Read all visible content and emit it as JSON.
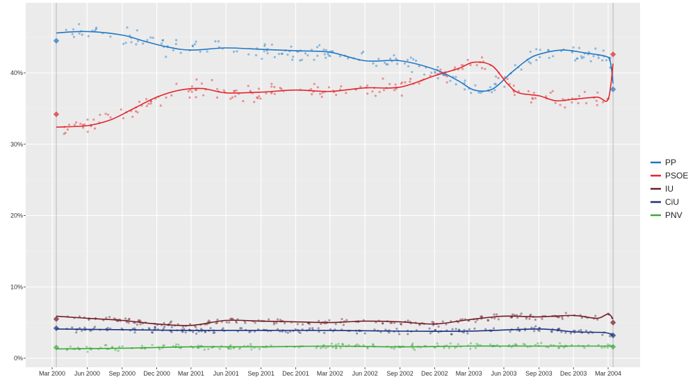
{
  "chart_data": {
    "type": "line",
    "title": "",
    "xlabel": "",
    "ylabel": "",
    "ylim": [
      0,
      48
    ],
    "xlim": [
      "2000-02-01",
      "2004-04-07"
    ],
    "grid": true,
    "legend_position": "right",
    "y_ticks": [
      {
        "value": 0,
        "label": "0%"
      },
      {
        "value": 10,
        "label": "10%"
      },
      {
        "value": 20,
        "label": "20%"
      },
      {
        "value": 30,
        "label": "30%"
      },
      {
        "value": 40,
        "label": "40%"
      }
    ],
    "x_ticks": [
      {
        "date": "2000-03-01",
        "label": "Mar 2000"
      },
      {
        "date": "2000-06-01",
        "label": "Jun 2000"
      },
      {
        "date": "2000-09-01",
        "label": "Sep 2000"
      },
      {
        "date": "2000-12-01",
        "label": "Dec 2000"
      },
      {
        "date": "2001-03-01",
        "label": "Mar 2001"
      },
      {
        "date": "2001-06-01",
        "label": "Jun 2001"
      },
      {
        "date": "2001-09-01",
        "label": "Sep 2001"
      },
      {
        "date": "2001-12-01",
        "label": "Dec 2001"
      },
      {
        "date": "2002-03-01",
        "label": "Mar 2002"
      },
      {
        "date": "2002-06-01",
        "label": "Jun 2002"
      },
      {
        "date": "2002-09-01",
        "label": "Sep 2002"
      },
      {
        "date": "2002-12-01",
        "label": "Dec 2002"
      },
      {
        "date": "2003-03-01",
        "label": "Mar 2003"
      },
      {
        "date": "2003-06-01",
        "label": "Jun 2003"
      },
      {
        "date": "2003-09-01",
        "label": "Sep 2003"
      },
      {
        "date": "2003-12-01",
        "label": "Dec 2003"
      },
      {
        "date": "2004-03-01",
        "label": "Mar 2004"
      }
    ],
    "election_dates": [
      "2000-03-12",
      "2004-03-14"
    ],
    "series": [
      {
        "name": "PP",
        "color": "#1f77c4",
        "election_results": [
          {
            "date": "2000-03-12",
            "value": 44.5
          },
          {
            "date": "2004-03-14",
            "value": 37.7
          }
        ],
        "trend": [
          {
            "date": "2000-03-12",
            "value": 45.6
          },
          {
            "date": "2000-06-01",
            "value": 45.8
          },
          {
            "date": "2000-09-01",
            "value": 45.3
          },
          {
            "date": "2000-11-01",
            "value": 44.4
          },
          {
            "date": "2001-01-01",
            "value": 43.6
          },
          {
            "date": "2001-03-01",
            "value": 43.2
          },
          {
            "date": "2001-06-01",
            "value": 43.5
          },
          {
            "date": "2001-09-01",
            "value": 43.3
          },
          {
            "date": "2001-12-01",
            "value": 43.1
          },
          {
            "date": "2002-03-01",
            "value": 42.9
          },
          {
            "date": "2002-06-01",
            "value": 41.7
          },
          {
            "date": "2002-09-01",
            "value": 41.7
          },
          {
            "date": "2002-12-01",
            "value": 40.5
          },
          {
            "date": "2003-02-01",
            "value": 38.9
          },
          {
            "date": "2003-03-15",
            "value": 37.6
          },
          {
            "date": "2003-05-01",
            "value": 37.7
          },
          {
            "date": "2003-06-20",
            "value": 40.0
          },
          {
            "date": "2003-08-01",
            "value": 41.8
          },
          {
            "date": "2003-09-01",
            "value": 42.6
          },
          {
            "date": "2003-11-01",
            "value": 43.2
          },
          {
            "date": "2004-01-01",
            "value": 42.8
          },
          {
            "date": "2004-02-25",
            "value": 42.3
          },
          {
            "date": "2004-03-07",
            "value": 41.5
          },
          {
            "date": "2004-03-14",
            "value": 38.5
          }
        ],
        "polls_approx_range": [
          37,
          46
        ]
      },
      {
        "name": "PSOE",
        "color": "#e3242b",
        "election_results": [
          {
            "date": "2000-03-12",
            "value": 34.2
          },
          {
            "date": "2004-03-14",
            "value": 42.6
          }
        ],
        "trend": [
          {
            "date": "2000-03-12",
            "value": 32.4
          },
          {
            "date": "2000-06-01",
            "value": 32.6
          },
          {
            "date": "2000-08-01",
            "value": 33.4
          },
          {
            "date": "2000-10-01",
            "value": 35.0
          },
          {
            "date": "2000-12-01",
            "value": 36.6
          },
          {
            "date": "2001-02-01",
            "value": 37.6
          },
          {
            "date": "2001-04-01",
            "value": 37.8
          },
          {
            "date": "2001-06-01",
            "value": 37.2
          },
          {
            "date": "2001-09-01",
            "value": 37.3
          },
          {
            "date": "2001-12-01",
            "value": 37.6
          },
          {
            "date": "2002-03-01",
            "value": 37.4
          },
          {
            "date": "2002-06-01",
            "value": 37.9
          },
          {
            "date": "2002-09-01",
            "value": 38.0
          },
          {
            "date": "2002-12-01",
            "value": 39.6
          },
          {
            "date": "2003-02-01",
            "value": 40.6
          },
          {
            "date": "2003-03-15",
            "value": 41.5
          },
          {
            "date": "2003-05-01",
            "value": 41.0
          },
          {
            "date": "2003-06-10",
            "value": 38.5
          },
          {
            "date": "2003-07-10",
            "value": 37.2
          },
          {
            "date": "2003-09-01",
            "value": 36.8
          },
          {
            "date": "2003-10-15",
            "value": 36.1
          },
          {
            "date": "2003-12-01",
            "value": 36.3
          },
          {
            "date": "2004-02-01",
            "value": 36.6
          },
          {
            "date": "2004-03-01",
            "value": 36.3
          },
          {
            "date": "2004-03-14",
            "value": 41.3
          }
        ],
        "polls_approx_range": [
          30,
          44
        ]
      },
      {
        "name": "IU",
        "color": "#6e1c27",
        "election_results": [
          {
            "date": "2000-03-12",
            "value": 5.5
          },
          {
            "date": "2004-03-14",
            "value": 5.0
          }
        ],
        "trend": [
          {
            "date": "2000-03-12",
            "value": 5.9
          },
          {
            "date": "2000-06-01",
            "value": 5.6
          },
          {
            "date": "2000-09-01",
            "value": 5.3
          },
          {
            "date": "2000-12-01",
            "value": 4.8
          },
          {
            "date": "2001-03-01",
            "value": 4.6
          },
          {
            "date": "2001-06-01",
            "value": 5.3
          },
          {
            "date": "2001-09-01",
            "value": 5.2
          },
          {
            "date": "2001-12-01",
            "value": 5.1
          },
          {
            "date": "2002-03-01",
            "value": 5.0
          },
          {
            "date": "2002-06-01",
            "value": 5.2
          },
          {
            "date": "2002-09-01",
            "value": 5.1
          },
          {
            "date": "2002-12-01",
            "value": 4.8
          },
          {
            "date": "2003-03-01",
            "value": 5.4
          },
          {
            "date": "2003-06-01",
            "value": 5.9
          },
          {
            "date": "2003-09-01",
            "value": 5.8
          },
          {
            "date": "2003-12-01",
            "value": 6.0
          },
          {
            "date": "2004-02-01",
            "value": 5.6
          },
          {
            "date": "2004-03-01",
            "value": 6.2
          },
          {
            "date": "2004-03-14",
            "value": 5.5
          }
        ],
        "polls_approx_range": [
          4,
          7.5
        ]
      },
      {
        "name": "CiU",
        "color": "#1c2f7a",
        "election_results": [
          {
            "date": "2000-03-12",
            "value": 4.2
          },
          {
            "date": "2004-03-14",
            "value": 3.2
          }
        ],
        "trend": [
          {
            "date": "2000-03-12",
            "value": 4.1
          },
          {
            "date": "2000-09-01",
            "value": 4.0
          },
          {
            "date": "2001-03-01",
            "value": 3.9
          },
          {
            "date": "2001-09-01",
            "value": 3.9
          },
          {
            "date": "2002-03-01",
            "value": 3.9
          },
          {
            "date": "2002-09-01",
            "value": 3.8
          },
          {
            "date": "2003-03-01",
            "value": 3.8
          },
          {
            "date": "2003-09-01",
            "value": 4.1
          },
          {
            "date": "2003-12-01",
            "value": 3.7
          },
          {
            "date": "2004-02-20",
            "value": 3.6
          },
          {
            "date": "2004-03-14",
            "value": 3.2
          }
        ],
        "polls_approx_range": [
          2.5,
          4.5
        ]
      },
      {
        "name": "PNV",
        "color": "#3aaa3a",
        "election_results": [
          {
            "date": "2000-03-12",
            "value": 1.5
          },
          {
            "date": "2004-03-14",
            "value": 1.6
          }
        ],
        "trend": [
          {
            "date": "2000-03-12",
            "value": 1.3
          },
          {
            "date": "2000-09-01",
            "value": 1.4
          },
          {
            "date": "2001-03-01",
            "value": 1.6
          },
          {
            "date": "2001-09-01",
            "value": 1.6
          },
          {
            "date": "2002-03-01",
            "value": 1.7
          },
          {
            "date": "2002-09-01",
            "value": 1.6
          },
          {
            "date": "2003-03-01",
            "value": 1.7
          },
          {
            "date": "2003-09-01",
            "value": 1.7
          },
          {
            "date": "2004-03-14",
            "value": 1.7
          }
        ],
        "polls_approx_range": [
          1,
          2.3
        ]
      }
    ]
  }
}
